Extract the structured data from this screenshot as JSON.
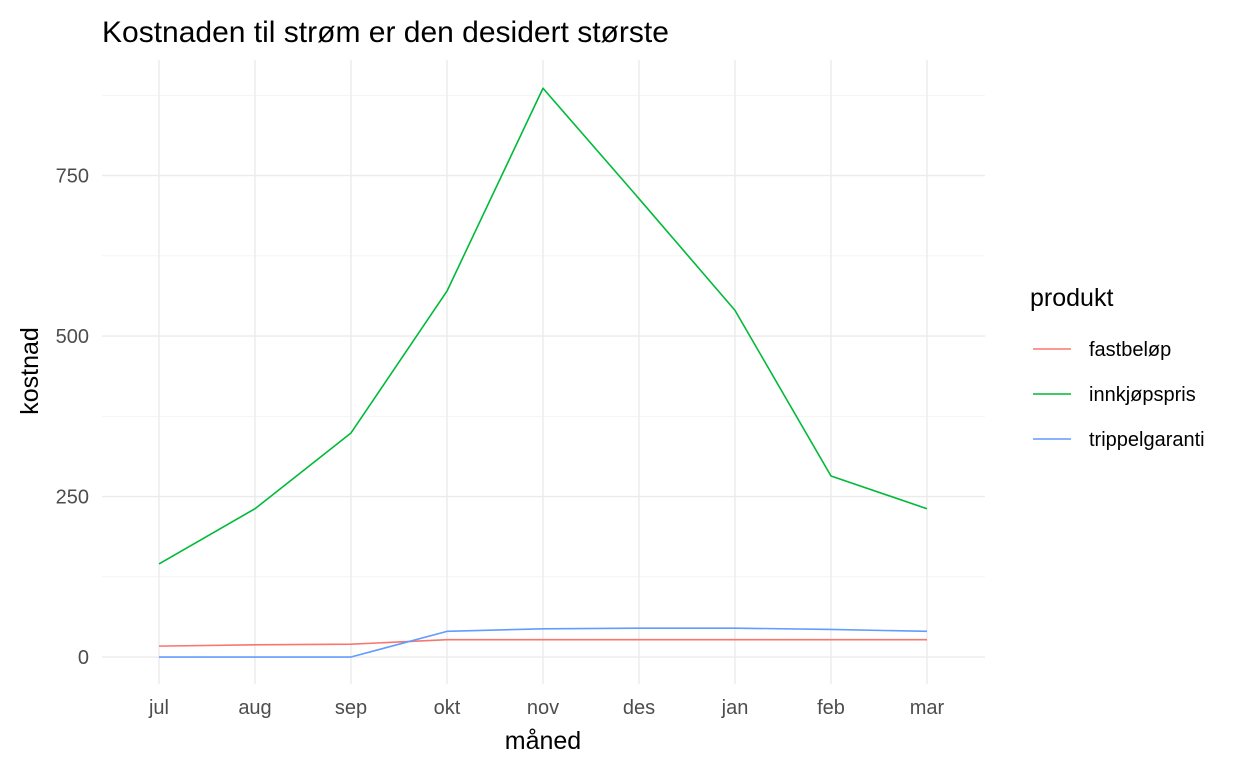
{
  "chart_data": {
    "type": "line",
    "title": "Kostnaden til strøm er den desidert største",
    "xlabel": "måned",
    "ylabel": "kostnad",
    "categories": [
      "jul",
      "aug",
      "sep",
      "okt",
      "nov",
      "des",
      "jan",
      "feb",
      "mar"
    ],
    "y_ticks": [
      0,
      250,
      500,
      750
    ],
    "ylim": [
      -42,
      930
    ],
    "grid": true,
    "legend": {
      "title": "produkt",
      "position": "right"
    },
    "series": [
      {
        "name": "fastbeløp",
        "color": "#F8766D",
        "values": [
          17,
          19,
          20,
          27,
          27,
          27,
          27,
          27,
          27
        ]
      },
      {
        "name": "innkjøpspris",
        "color": "#00BA38",
        "values": [
          145,
          231,
          349,
          570,
          886,
          714,
          540,
          282,
          231
        ]
      },
      {
        "name": "trippelgaranti",
        "color": "#619CFF",
        "values": [
          0,
          0,
          0,
          40,
          44,
          45,
          45,
          43,
          40
        ]
      }
    ]
  }
}
